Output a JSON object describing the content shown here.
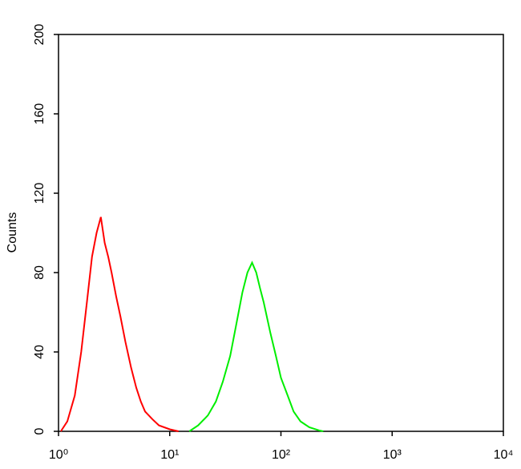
{
  "chart_data": {
    "type": "line",
    "ylabel": "Counts",
    "xlog": true,
    "xlim": [
      1,
      10000
    ],
    "xticks": [
      {
        "value": 1,
        "label": "10⁰"
      },
      {
        "value": 10,
        "label": "10¹"
      },
      {
        "value": 100,
        "label": "10²"
      },
      {
        "value": 1000,
        "label": "10³"
      },
      {
        "value": 10000,
        "label": "10⁴"
      }
    ],
    "ylim": [
      0,
      200
    ],
    "yticks": [
      0,
      40,
      80,
      120,
      160,
      200
    ],
    "grid": false,
    "series": [
      {
        "color": "#ff0000",
        "x": [
          1.05,
          1.2,
          1.4,
          1.6,
          1.8,
          2.0,
          2.2,
          2.4,
          2.6,
          2.8,
          3.0,
          3.3,
          3.6,
          4.0,
          4.5,
          5.0,
          5.5,
          6.0,
          7.0,
          8.0,
          10,
          12
        ],
        "values": [
          0,
          5,
          18,
          40,
          65,
          88,
          100,
          108,
          95,
          88,
          80,
          68,
          58,
          45,
          32,
          22,
          15,
          10,
          6,
          3,
          1,
          0
        ]
      },
      {
        "color": "#00ee00",
        "x": [
          15,
          18,
          22,
          26,
          30,
          35,
          40,
          45,
          50,
          55,
          60,
          65,
          70,
          80,
          90,
          100,
          115,
          130,
          150,
          180,
          220,
          240
        ],
        "values": [
          0,
          3,
          8,
          15,
          25,
          38,
          55,
          70,
          80,
          85,
          80,
          72,
          65,
          50,
          38,
          27,
          18,
          10,
          5,
          2,
          0.5,
          0
        ]
      }
    ]
  }
}
